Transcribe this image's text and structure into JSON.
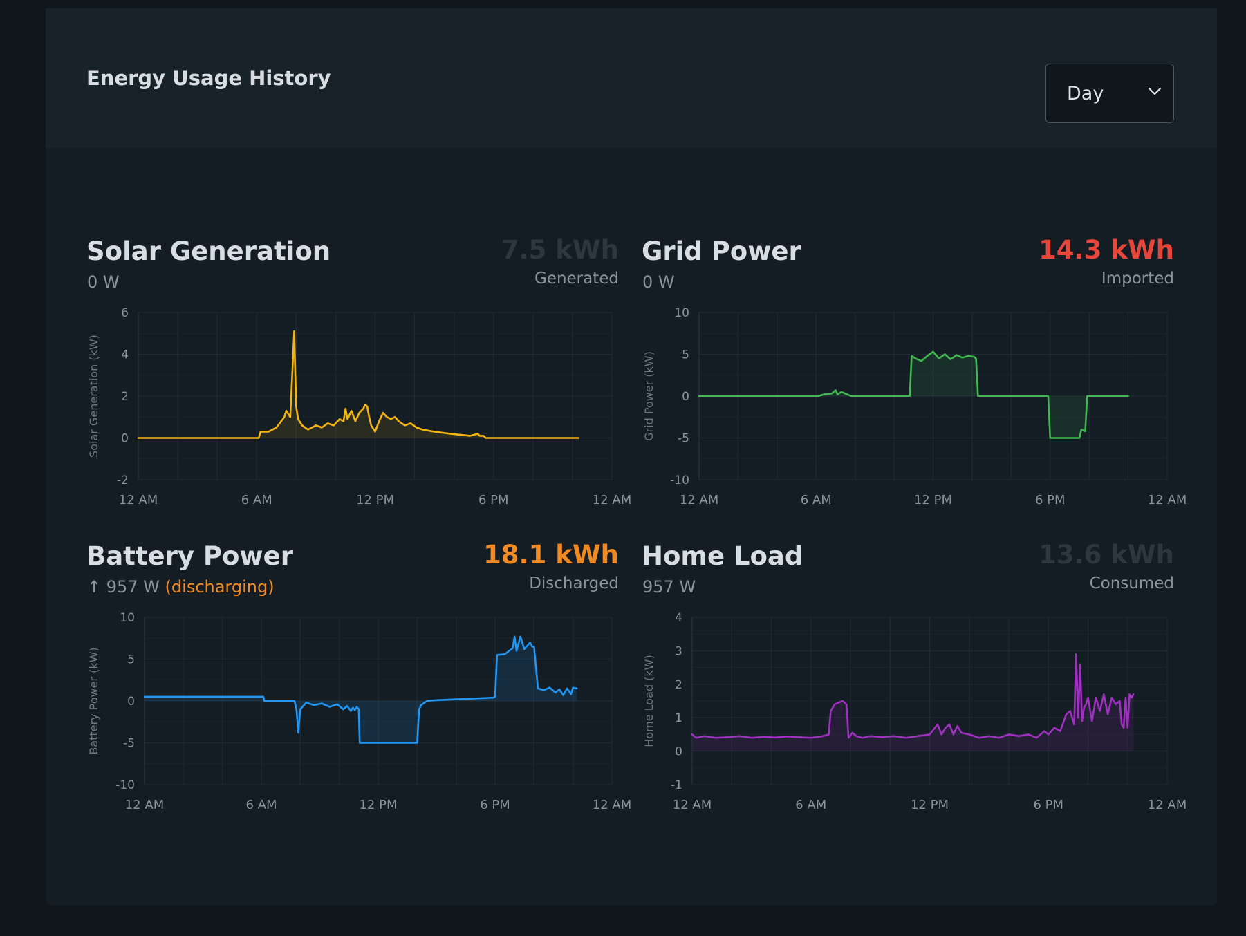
{
  "header": {
    "title": "Energy Usage History",
    "range_select": {
      "value": "Day",
      "icon": "chevron-down-icon"
    }
  },
  "panels": [
    {
      "id": "solar",
      "title": "Solar Generation",
      "current": "0 W",
      "current_status": "",
      "total": "7.5 kWh",
      "total_caption": "Generated",
      "total_color": "#2f373e",
      "color": "#f5b50f",
      "fill": "rgba(245,181,15,0.10)"
    },
    {
      "id": "grid",
      "title": "Grid Power",
      "current": "0 W",
      "current_status": "",
      "total": "14.3 kWh",
      "total_caption": "Imported",
      "total_color": "#e5473b",
      "color": "#3fb950",
      "fill": "rgba(63,185,80,0.12)"
    },
    {
      "id": "battery",
      "title": "Battery Power",
      "current": "↑ 957 W",
      "current_status": "(discharging)",
      "total": "18.1 kWh",
      "total_caption": "Discharged",
      "total_color": "#f08a24",
      "color": "#2196f3",
      "fill": "rgba(33,150,243,0.14)"
    },
    {
      "id": "home",
      "title": "Home Load",
      "current": "957 W",
      "current_status": "",
      "total": "13.6 kWh",
      "total_caption": "Consumed",
      "total_color": "#2f373e",
      "color": "#a030c0",
      "fill": "rgba(160,48,192,0.12)"
    }
  ],
  "chart_data": [
    {
      "type": "area",
      "ylabel": "Solar Generation (kW)",
      "xlabel": "",
      "xlim": [
        0,
        24
      ],
      "ylim": [
        -2,
        6
      ],
      "x_ticks": [
        0,
        6,
        12,
        18,
        24
      ],
      "x_tick_labels": [
        "12 AM",
        "6 AM",
        "12 PM",
        "6 PM",
        "12 AM"
      ],
      "y_ticks": [
        -2,
        0,
        2,
        4,
        6
      ],
      "grid": true,
      "series": [
        {
          "x": [
            0,
            6.1,
            6.2,
            6.6,
            7.0,
            7.4,
            7.5,
            7.7,
            7.8,
            7.9,
            8.0,
            8.1,
            8.3,
            8.6,
            9.0,
            9.3,
            9.6,
            9.9,
            10.2,
            10.4,
            10.5,
            10.6,
            10.8,
            11.0,
            11.2,
            11.4,
            11.5,
            11.6,
            11.7,
            11.8,
            12.0,
            12.2,
            12.4,
            12.6,
            12.8,
            13.0,
            13.2,
            13.5,
            13.8,
            14.1,
            14.4,
            14.7,
            15.0,
            15.4,
            15.8,
            16.3,
            16.8,
            17.2,
            17.3,
            17.5,
            17.6,
            22.3
          ],
          "y": [
            0,
            0,
            0.3,
            0.3,
            0.5,
            1.0,
            1.3,
            1.0,
            3.0,
            5.1,
            1.5,
            0.9,
            0.6,
            0.4,
            0.6,
            0.5,
            0.7,
            0.6,
            0.9,
            0.8,
            1.4,
            0.9,
            1.3,
            0.8,
            1.2,
            1.4,
            1.6,
            1.5,
            1.0,
            0.6,
            0.3,
            0.8,
            1.2,
            1.0,
            0.9,
            1.0,
            0.8,
            0.6,
            0.7,
            0.5,
            0.4,
            0.35,
            0.3,
            0.25,
            0.2,
            0.15,
            0.1,
            0.2,
            0.1,
            0.1,
            0,
            0
          ]
        }
      ]
    },
    {
      "type": "area",
      "ylabel": "Grid Power (kW)",
      "xlabel": "",
      "xlim": [
        0,
        24
      ],
      "ylim": [
        -10,
        10
      ],
      "x_ticks": [
        0,
        6,
        12,
        18,
        24
      ],
      "x_tick_labels": [
        "12 AM",
        "6 AM",
        "12 PM",
        "6 PM",
        "12 AM"
      ],
      "y_ticks": [
        -10,
        -5,
        0,
        5,
        10
      ],
      "grid": true,
      "series": [
        {
          "x": [
            0,
            6.1,
            6.4,
            6.8,
            7.0,
            7.1,
            7.3,
            7.6,
            7.8,
            10.8,
            10.9,
            11.1,
            11.4,
            11.7,
            12.0,
            12.3,
            12.6,
            12.9,
            13.2,
            13.5,
            13.8,
            14.1,
            14.2,
            14.3,
            17.9,
            18.0,
            19.5,
            19.6,
            19.8,
            19.9,
            22.0
          ],
          "y": [
            0,
            0,
            0.2,
            0.3,
            0.7,
            0.2,
            0.5,
            0.2,
            0,
            0,
            4.8,
            4.5,
            4.2,
            4.8,
            5.3,
            4.5,
            5.0,
            4.4,
            4.9,
            4.6,
            4.8,
            4.7,
            4.5,
            0,
            0,
            -5,
            -5,
            -4,
            -4.2,
            0,
            0
          ]
        }
      ]
    },
    {
      "type": "area",
      "ylabel": "Battery Power (kW)",
      "xlabel": "",
      "xlim": [
        0,
        24
      ],
      "ylim": [
        -10,
        10
      ],
      "x_ticks": [
        0,
        6,
        12,
        18,
        24
      ],
      "x_tick_labels": [
        "12 AM",
        "6 AM",
        "12 PM",
        "6 PM",
        "12 AM"
      ],
      "y_ticks": [
        -10,
        -5,
        0,
        5,
        10
      ],
      "grid": true,
      "series": [
        {
          "x": [
            0,
            6.1,
            6.15,
            7.7,
            7.8,
            7.9,
            8.0,
            8.3,
            8.7,
            9.1,
            9.5,
            9.9,
            10.2,
            10.4,
            10.6,
            10.7,
            10.8,
            10.9,
            11.0,
            11.05,
            11.1,
            14.0,
            14.1,
            14.2,
            14.5,
            15.0,
            16.0,
            17.0,
            17.9,
            18.0,
            18.1,
            18.5,
            18.9,
            19.0,
            19.1,
            19.3,
            19.5,
            19.8,
            19.9,
            20.0,
            20.2,
            20.5,
            20.8,
            21.1,
            21.3,
            21.5,
            21.7,
            21.9,
            22.0,
            22.2
          ],
          "y": [
            0.5,
            0.5,
            0,
            0,
            -1.0,
            -3.8,
            -1.0,
            -0.2,
            -0.5,
            -0.3,
            -0.7,
            -0.4,
            -1.0,
            -0.6,
            -1.2,
            -0.8,
            -1.1,
            -0.7,
            -1.0,
            -5,
            -5,
            -5,
            -1.0,
            -0.5,
            0,
            0.1,
            0.2,
            0.3,
            0.4,
            0.5,
            5.5,
            5.6,
            6.3,
            7.7,
            6.0,
            7.7,
            6.2,
            7.0,
            6.5,
            6.5,
            1.5,
            1.3,
            1.6,
            1.0,
            1.4,
            0.7,
            1.5,
            0.8,
            1.6,
            1.5
          ]
        }
      ]
    },
    {
      "type": "area",
      "ylabel": "Home Load (kW)",
      "xlabel": "",
      "xlim": [
        0,
        24
      ],
      "ylim": [
        -1,
        4
      ],
      "x_ticks": [
        0,
        6,
        12,
        18,
        24
      ],
      "x_tick_labels": [
        "12 AM",
        "6 AM",
        "12 PM",
        "6 PM",
        "12 AM"
      ],
      "y_ticks": [
        -1,
        0,
        1,
        2,
        3,
        4
      ],
      "grid": true,
      "series": [
        {
          "x": [
            0,
            0.2,
            0.6,
            1.2,
            1.8,
            2.4,
            3.0,
            3.6,
            4.2,
            4.8,
            5.4,
            6.0,
            6.6,
            6.9,
            7.0,
            7.2,
            7.6,
            7.8,
            7.9,
            8.1,
            8.3,
            8.6,
            9.0,
            9.6,
            10.2,
            10.8,
            11.4,
            12.0,
            12.4,
            12.6,
            12.8,
            13.0,
            13.2,
            13.4,
            13.6,
            14.0,
            14.5,
            15.0,
            15.5,
            16.0,
            16.5,
            17.0,
            17.4,
            17.8,
            18.0,
            18.3,
            18.6,
            18.9,
            19.1,
            19.3,
            19.4,
            19.5,
            19.6,
            19.7,
            19.8,
            19.9,
            20.0,
            20.2,
            20.4,
            20.6,
            20.8,
            21.0,
            21.2,
            21.4,
            21.6,
            21.7,
            21.8,
            21.9,
            22.0,
            22.1,
            22.2,
            22.3
          ],
          "y": [
            0.5,
            0.4,
            0.45,
            0.4,
            0.42,
            0.45,
            0.4,
            0.43,
            0.41,
            0.44,
            0.42,
            0.4,
            0.45,
            0.5,
            1.2,
            1.4,
            1.5,
            1.4,
            0.4,
            0.55,
            0.45,
            0.4,
            0.45,
            0.42,
            0.45,
            0.4,
            0.45,
            0.5,
            0.8,
            0.5,
            0.7,
            0.8,
            0.5,
            0.75,
            0.55,
            0.5,
            0.4,
            0.45,
            0.4,
            0.5,
            0.45,
            0.5,
            0.4,
            0.6,
            0.5,
            0.7,
            0.6,
            1.1,
            1.2,
            0.8,
            2.9,
            1.0,
            2.6,
            0.9,
            1.3,
            1.4,
            1.6,
            0.9,
            1.6,
            1.2,
            1.7,
            1.1,
            1.6,
            1.4,
            1.5,
            0.8,
            0.7,
            1.6,
            0.7,
            1.7,
            1.6,
            1.7
          ]
        }
      ]
    }
  ]
}
